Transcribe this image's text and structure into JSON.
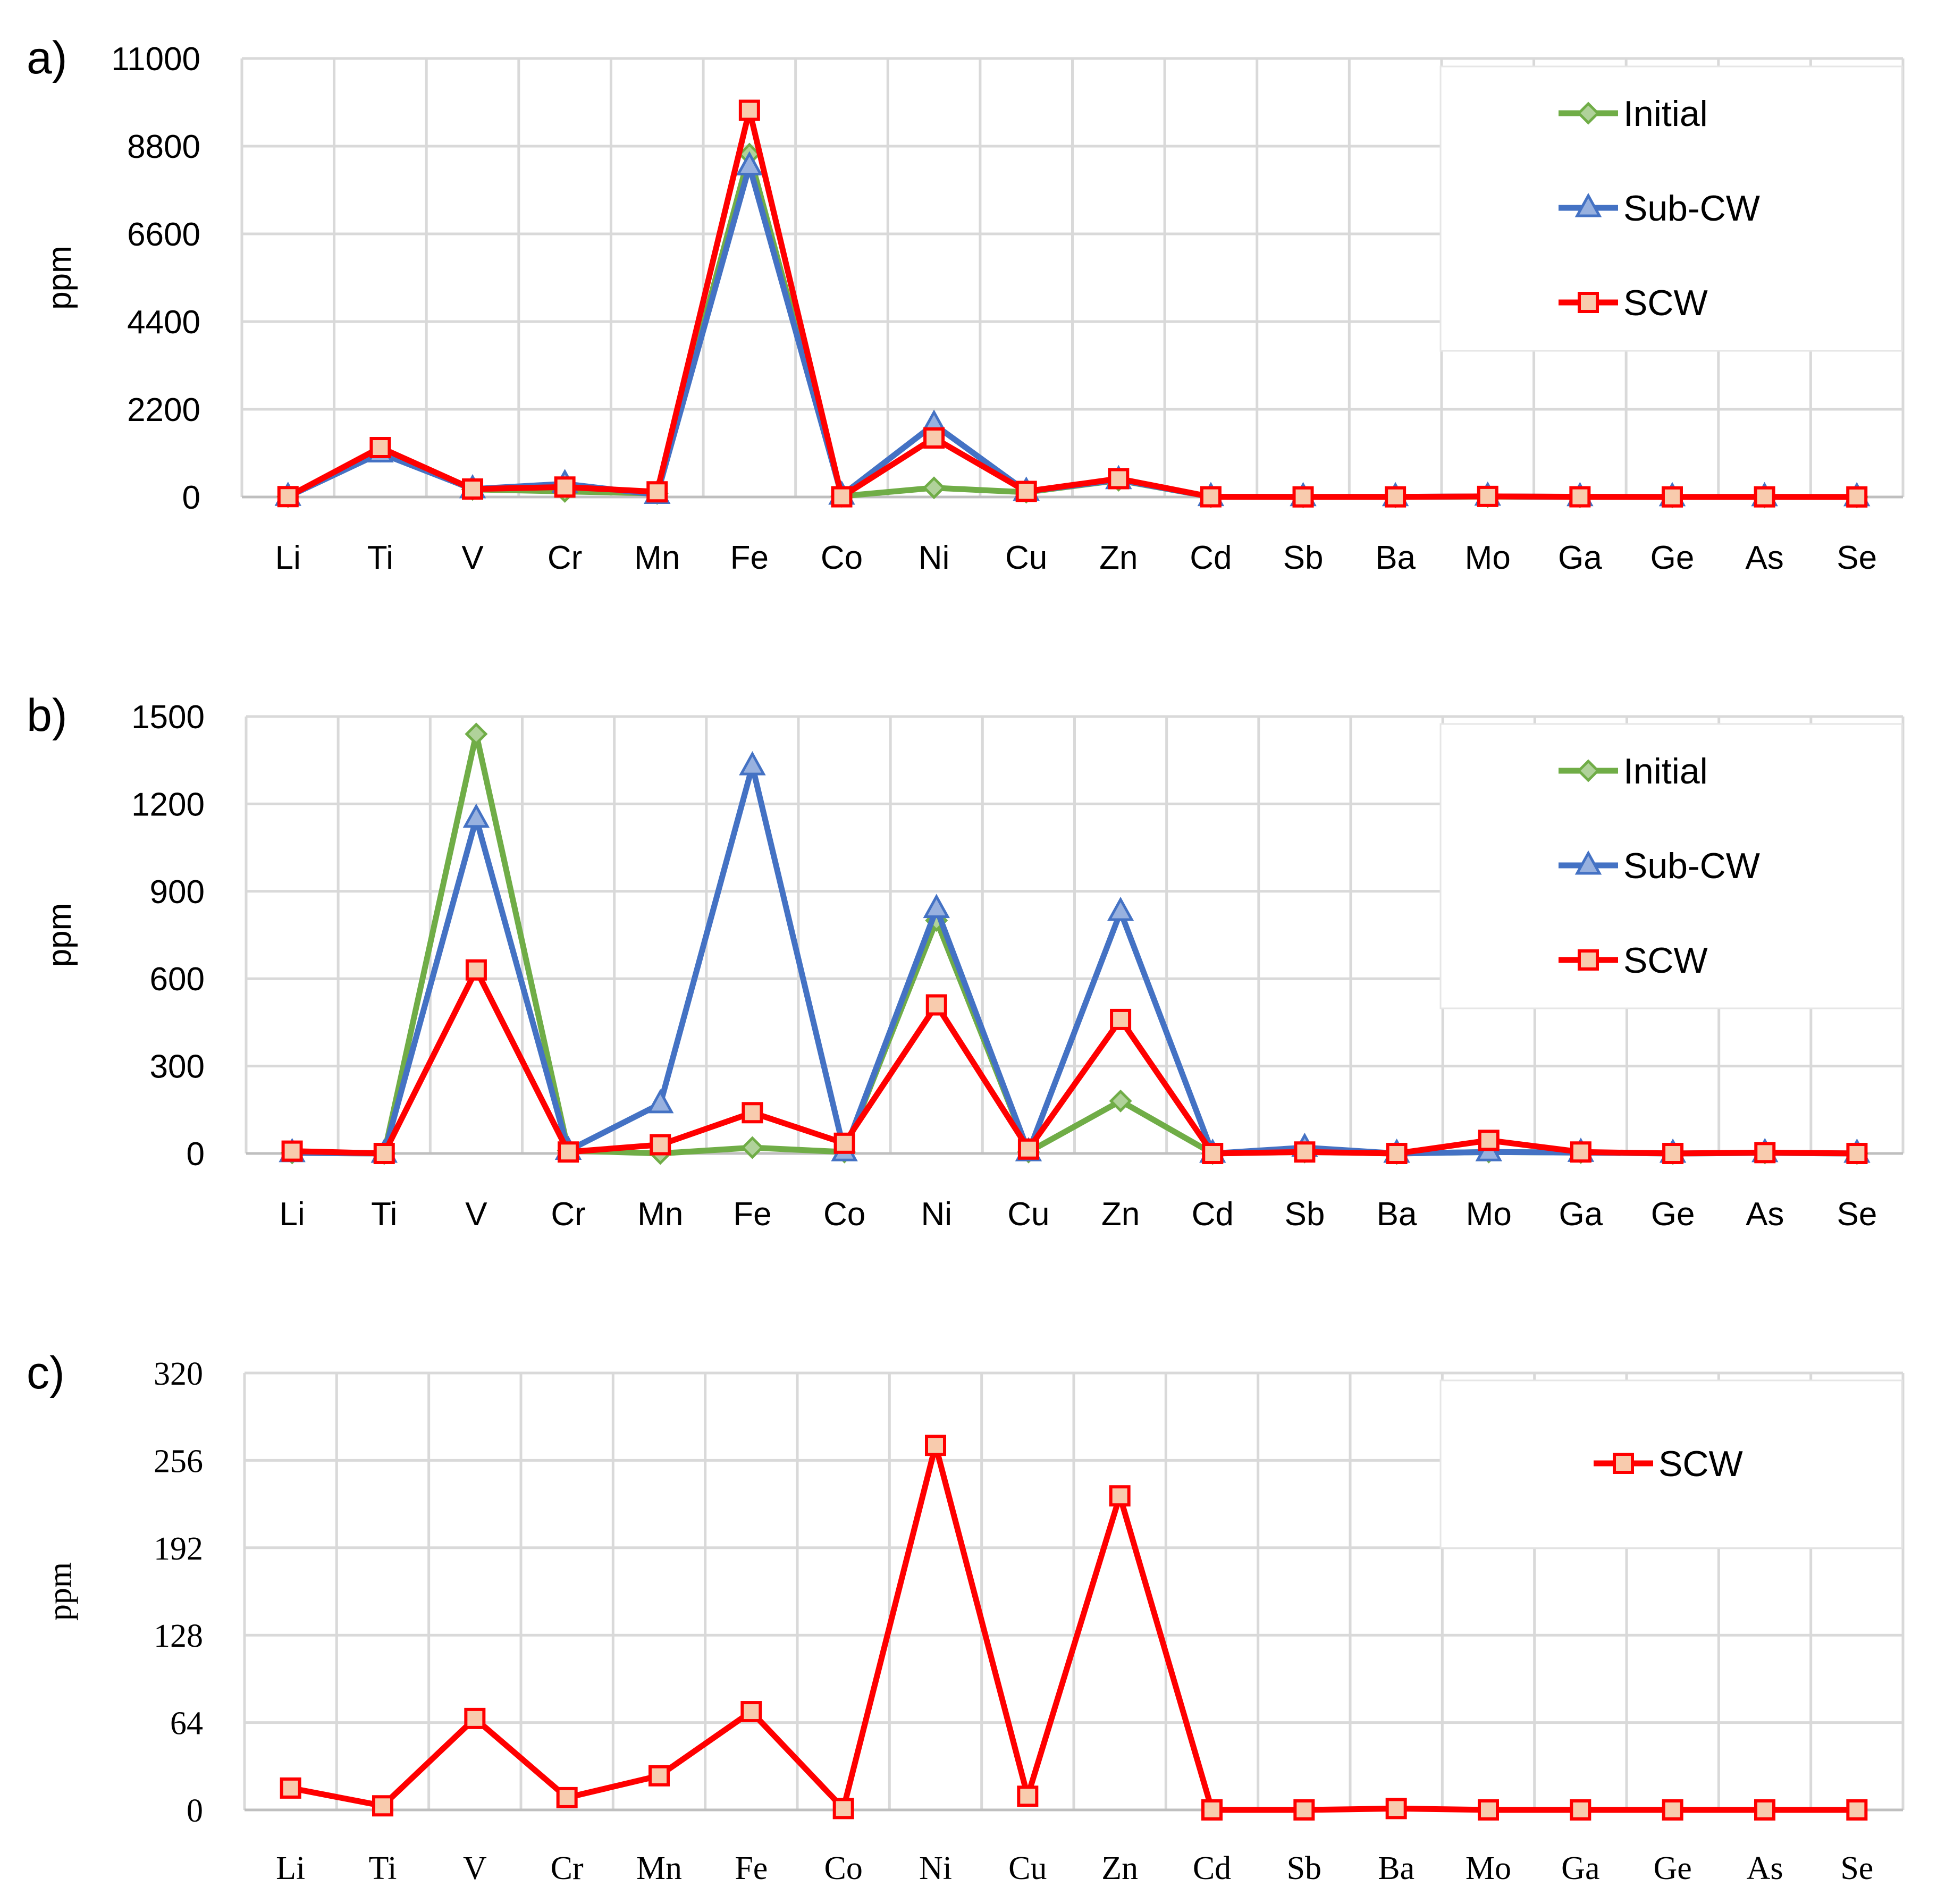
{
  "chart_data": [
    {
      "type": "line",
      "panel_label": "a)",
      "ylabel": "ppm",
      "ylim": [
        0,
        11000
      ],
      "yticks": [
        "0",
        "2200",
        "4400",
        "6600",
        "8800",
        "11000"
      ],
      "ytick_values": [
        0,
        2200,
        4400,
        6600,
        8800,
        11000
      ],
      "categories": [
        "Li",
        "Ti",
        "V",
        "Cr",
        "Mn",
        "Fe",
        "Co",
        "Ni",
        "Cu",
        "Zn",
        "Cd",
        "Sb",
        "Ba",
        "Mo",
        "Ga",
        "Ge",
        "As",
        "Se"
      ],
      "grid": true,
      "legend": "top-right",
      "series": [
        {
          "name": "Initial",
          "color": "#70ad47",
          "marker": "diamond",
          "values": [
            10,
            1150,
            190,
            140,
            90,
            8600,
            20,
            230,
            120,
            420,
            5,
            2,
            3,
            10,
            3,
            2,
            2,
            1
          ]
        },
        {
          "name": "Sub-CW",
          "color": "#4472c4",
          "marker": "triangle",
          "values": [
            10,
            1100,
            200,
            330,
            60,
            8300,
            40,
            1820,
            140,
            430,
            5,
            3,
            3,
            15,
            3,
            2,
            2,
            1
          ]
        },
        {
          "name": "SCW",
          "color": "#ff0000",
          "marker": "square",
          "values": [
            10,
            1240,
            200,
            250,
            130,
            9700,
            5,
            1480,
            140,
            460,
            5,
            2,
            3,
            15,
            5,
            2,
            3,
            1
          ]
        }
      ]
    },
    {
      "type": "line",
      "panel_label": "b)",
      "ylabel": "ppm",
      "ylim": [
        0,
        1500
      ],
      "yticks": [
        "0",
        "300",
        "600",
        "900",
        "1200",
        "1500"
      ],
      "ytick_values": [
        0,
        300,
        600,
        900,
        1200,
        1500
      ],
      "categories": [
        "Li",
        "Ti",
        "V",
        "Cr",
        "Mn",
        "Fe",
        "Co",
        "Ni",
        "Cu",
        "Zn",
        "Cd",
        "Sb",
        "Ba",
        "Mo",
        "Ga",
        "Ge",
        "As",
        "Se"
      ],
      "grid": true,
      "legend": "top-right",
      "series": [
        {
          "name": "Initial",
          "color": "#70ad47",
          "marker": "diamond",
          "values": [
            2,
            0,
            1440,
            10,
            0,
            20,
            5,
            800,
            5,
            180,
            0,
            5,
            0,
            5,
            3,
            0,
            2,
            0
          ]
        },
        {
          "name": "Sub-CW",
          "color": "#4472c4",
          "marker": "triangle",
          "values": [
            2,
            0,
            1150,
            10,
            170,
            1330,
            5,
            840,
            5,
            830,
            0,
            20,
            0,
            5,
            3,
            0,
            2,
            0
          ]
        },
        {
          "name": "SCW",
          "color": "#ff0000",
          "marker": "square",
          "values": [
            8,
            0,
            630,
            5,
            30,
            140,
            35,
            510,
            15,
            460,
            0,
            5,
            0,
            45,
            5,
            0,
            3,
            0
          ]
        }
      ]
    },
    {
      "type": "line",
      "panel_label": "c)",
      "ylabel": "ppm",
      "ylim": [
        0,
        320
      ],
      "yticks": [
        "0",
        "64",
        "128",
        "192",
        "256",
        "320"
      ],
      "ytick_values": [
        0,
        64,
        128,
        192,
        256,
        320
      ],
      "categories": [
        "Li",
        "Ti",
        "V",
        "Cr",
        "Mn",
        "Fe",
        "Co",
        "Ni",
        "Cu",
        "Zn",
        "Cd",
        "Sb",
        "Ba",
        "Mo",
        "Ga",
        "Ge",
        "As",
        "Se"
      ],
      "grid": true,
      "legend": "top-right",
      "series": [
        {
          "name": "SCW",
          "color": "#ff0000",
          "marker": "square",
          "values": [
            16,
            3,
            67,
            9,
            25,
            72,
            1,
            267,
            10,
            230,
            0,
            0,
            1,
            0,
            0,
            0,
            0,
            0
          ]
        }
      ]
    }
  ]
}
